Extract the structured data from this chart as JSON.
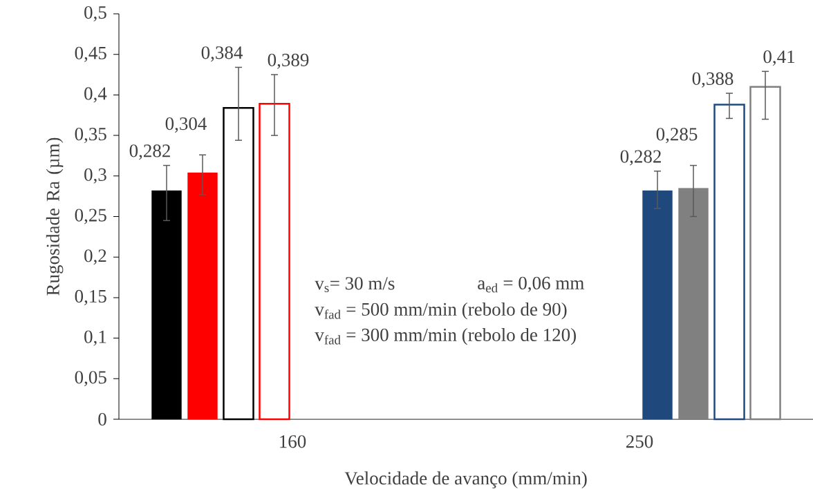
{
  "chart_data": {
    "type": "bar",
    "categories": [
      "160",
      "250"
    ],
    "xlabel": "Velocidade de avanço (mm/min)",
    "ylabel": "Rugosidade Ra (µm)",
    "ylim": [
      0,
      0.5
    ],
    "yticks": [
      0,
      {
        "value": 0.05,
        "label": "0,05"
      },
      {
        "value": 0.1,
        "label": "0,1"
      },
      {
        "value": 0.15,
        "label": "0,15"
      },
      {
        "value": 0.2,
        "label": "0,2"
      },
      {
        "value": 0.25,
        "label": "0,25"
      },
      {
        "value": 0.3,
        "label": "0,3"
      },
      {
        "value": 0.35,
        "label": "0,35"
      },
      {
        "value": 0.4,
        "label": "0,4"
      },
      {
        "value": 0.45,
        "label": "0,45"
      },
      {
        "value": 0.5,
        "label": "0,5"
      }
    ],
    "series": [
      {
        "color": "#000000",
        "values": [
          0.282,
          null
        ],
        "errors": [
          [
            0.245,
            0.313
          ],
          null
        ],
        "value_labels": [
          "0,282",
          null
        ]
      },
      {
        "color": "#ff0000",
        "values": [
          0.304,
          null
        ],
        "errors": [
          [
            0.277,
            0.326
          ],
          null
        ],
        "value_labels": [
          "0,304",
          null
        ]
      },
      {
        "color": "#000000",
        "values": [
          0.384,
          null
        ],
        "errors": [
          [
            0.344,
            0.434
          ],
          null
        ],
        "value_labels": [
          "0,384",
          null
        ]
      },
      {
        "color": "#ff0000",
        "values": [
          0.389,
          null
        ],
        "errors": [
          [
            0.35,
            0.425
          ],
          null
        ],
        "value_labels": [
          "0,389",
          null
        ]
      },
      {
        "color": "#1f497d",
        "values": [
          null,
          0.282
        ],
        "errors": [
          null,
          [
            0.26,
            0.306
          ]
        ],
        "value_labels": [
          null,
          "0,282"
        ]
      },
      {
        "color": "#808080",
        "values": [
          null,
          0.285
        ],
        "errors": [
          null,
          [
            0.25,
            0.313
          ]
        ],
        "value_labels": [
          null,
          "0,285"
        ]
      },
      {
        "color": "#1f497d",
        "values": [
          null,
          0.388
        ],
        "errors": [
          null,
          [
            0.371,
            0.402
          ]
        ],
        "value_labels": [
          null,
          "0,388"
        ]
      },
      {
        "color": "#808080",
        "values": [
          null,
          0.41
        ],
        "errors": [
          null,
          [
            0.37,
            0.429
          ]
        ],
        "value_labels": [
          null,
          "0,41"
        ]
      }
    ],
    "annotations": [
      "v$_{s}$= 30 m/s",
      "a$_{ed}$ = 0,06 mm",
      "v$_{fad}$ = 500 mm/min (rebolo de 90)",
      "v$_{fad}$ = 300 mm/min (rebolo de 120)"
    ],
    "grid": false
  }
}
